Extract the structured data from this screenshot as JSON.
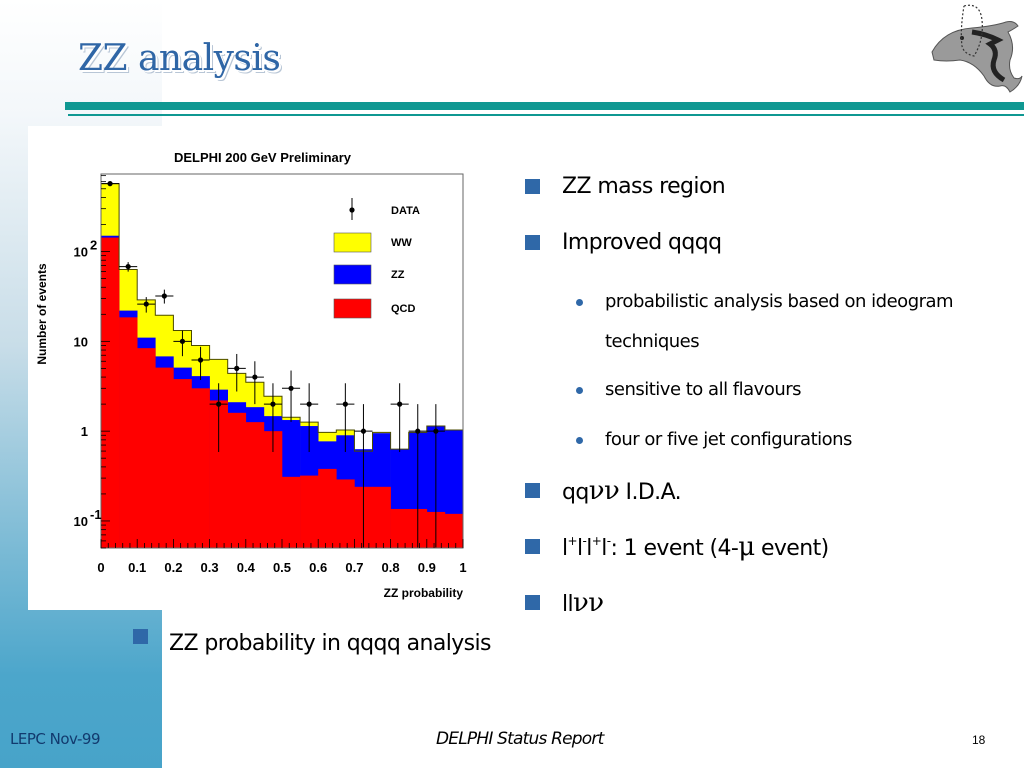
{
  "slide": {
    "title": "ZZ analysis",
    "logo": "delphi-dolphin-logo-icon",
    "accent_color": "#0f9892",
    "bullet_color": "#2f68a8"
  },
  "right_bullets": [
    {
      "level": 1,
      "text": "ZZ mass region"
    },
    {
      "level": 1,
      "text": "Improved qqqq"
    },
    {
      "level": 2,
      "text": "probabilistic analysis based on ideogram techniques"
    },
    {
      "level": 2,
      "text": "sensitive to all flavours"
    },
    {
      "level": 2,
      "text": "four or five jet configurations"
    },
    {
      "level": 1,
      "text_prefix": "qq",
      "greek": "νν",
      "text_suffix": " I.D.A."
    },
    {
      "level": 1,
      "parts": [
        "l",
        "+",
        "l",
        "-",
        "l",
        "+",
        "l",
        "-"
      ],
      "text_mid": ": 1 event (4-",
      "greek": "μ",
      "text_suffix": " event)"
    },
    {
      "level": 1,
      "text_prefix": "ll",
      "greek": "νν",
      "text_suffix": ""
    }
  ],
  "left_bullet": {
    "text": "ZZ probability in qqqq analysis"
  },
  "footer": {
    "left": "LEPC Nov-99",
    "center": "DELPHI Status Report",
    "page": "18"
  },
  "chart_data": {
    "type": "bar",
    "subtype": "stacked-histogram-log",
    "title": "DELPHI 200 GeV Preliminary",
    "xlabel": "ZZ probability",
    "ylabel": "Number of events",
    "xlim": [
      0,
      1
    ],
    "ylim": [
      0.05,
      730
    ],
    "yscale": "log",
    "x_ticks": [
      "0",
      "0.1",
      "0.2",
      "0.3",
      "0.4",
      "0.5",
      "0.6",
      "0.7",
      "0.8",
      "0.9",
      "1"
    ],
    "x_tick_values": [
      0,
      0.1,
      0.2,
      0.3,
      0.4,
      0.5,
      0.6,
      0.7,
      0.8,
      0.9,
      1.0
    ],
    "y_ticks": [
      {
        "value": 100,
        "base": "10",
        "exp": "2"
      },
      {
        "value": 10,
        "base": "10",
        "exp": ""
      },
      {
        "value": 1,
        "base": "1",
        "exp": ""
      },
      {
        "value": 0.1,
        "base": "10",
        "exp": "-1"
      }
    ],
    "bin_width": 0.05,
    "bin_edges_start": [
      0,
      0.05,
      0.1,
      0.15,
      0.2,
      0.25,
      0.3,
      0.35,
      0.4,
      0.45,
      0.5,
      0.55,
      0.6,
      0.65,
      0.7,
      0.75,
      0.8,
      0.85,
      0.9,
      0.95
    ],
    "legend": {
      "position": "top-right",
      "entries": [
        {
          "name": "DATA",
          "kind": "marker",
          "color": "#000000"
        },
        {
          "name": "WW",
          "kind": "box",
          "color": "#ffff00"
        },
        {
          "name": "ZZ",
          "kind": "box",
          "color": "#0000ff"
        },
        {
          "name": "QCD",
          "kind": "box",
          "color": "#ff0000"
        }
      ]
    },
    "series": [
      {
        "name": "QCD",
        "color": "#ff0000",
        "cumulative_top": [
          143,
          18.5,
          8.4,
          5.1,
          3.8,
          3.0,
          2.2,
          1.6,
          1.26,
          1.0,
          0.31,
          0.32,
          0.38,
          0.29,
          0.24,
          0.24,
          0.136,
          0.136,
          0.126,
          0.12
        ]
      },
      {
        "name": "ZZ",
        "color": "#0000ff",
        "cumulative_top": [
          150,
          22,
          11,
          6.8,
          5.1,
          4.1,
          2.9,
          2.1,
          1.85,
          1.47,
          1.33,
          1.14,
          0.77,
          0.9,
          0.63,
          0.95,
          0.63,
          0.97,
          1.14,
          1.03
        ]
      },
      {
        "name": "WW",
        "color": "#ffff00",
        "cumulative_top": [
          570,
          63,
          29,
          19.5,
          13.2,
          9.0,
          6.3,
          4.4,
          3.5,
          2.45,
          1.43,
          1.26,
          0.97,
          1.03,
          0.6,
          0.97,
          0.63,
          0.97,
          1.14,
          1.03
        ]
      }
    ],
    "data_points": [
      {
        "x": 0.025,
        "y": 570
      },
      {
        "x": 0.075,
        "y": 68
      },
      {
        "x": 0.125,
        "y": 26
      },
      {
        "x": 0.175,
        "y": 32
      },
      {
        "x": 0.225,
        "y": 10
      },
      {
        "x": 0.275,
        "y": 6.2
      },
      {
        "x": 0.325,
        "y": 2
      },
      {
        "x": 0.375,
        "y": 5
      },
      {
        "x": 0.425,
        "y": 4
      },
      {
        "x": 0.475,
        "y": 2
      },
      {
        "x": 0.525,
        "y": 3
      },
      {
        "x": 0.575,
        "y": 2
      },
      {
        "x": 0.675,
        "y": 2
      },
      {
        "x": 0.725,
        "y": 1
      },
      {
        "x": 0.825,
        "y": 2
      },
      {
        "x": 0.875,
        "y": 1
      },
      {
        "x": 0.925,
        "y": 1
      }
    ]
  }
}
